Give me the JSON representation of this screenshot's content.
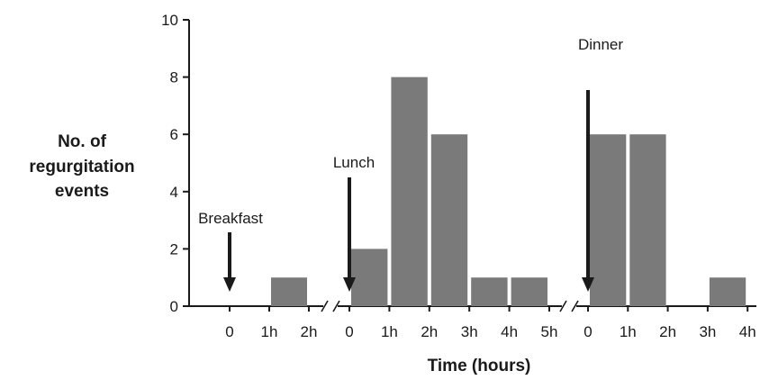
{
  "chart_data": {
    "type": "bar",
    "ylabel_lines": [
      "No.  of",
      "regurgitation",
      "events"
    ],
    "xlabel": "Time (hours)",
    "ylim": [
      0,
      10
    ],
    "yticks": [
      "0",
      "2",
      "4",
      "6",
      "8",
      "10"
    ],
    "grid": false,
    "legend": "none",
    "segments": [
      {
        "meal": "Breakfast",
        "ticks": [
          "0",
          "1h",
          "2h"
        ],
        "bars": [
          {
            "interval": "0-1h",
            "value": 0
          },
          {
            "interval": "1h-2h",
            "value": 1
          }
        ]
      },
      {
        "meal": "Lunch",
        "ticks": [
          "0",
          "1h",
          "2h",
          "3h",
          "4h",
          "5h"
        ],
        "bars": [
          {
            "interval": "0-1h",
            "value": 2
          },
          {
            "interval": "1h-2h",
            "value": 8
          },
          {
            "interval": "2h-3h",
            "value": 6
          },
          {
            "interval": "3h-4h",
            "value": 1
          },
          {
            "interval": "4h-5h",
            "value": 1
          }
        ]
      },
      {
        "meal": "Dinner",
        "ticks": [
          "0",
          "1h",
          "2h",
          "3h",
          "4h"
        ],
        "bars": [
          {
            "interval": "0-1h",
            "value": 6
          },
          {
            "interval": "1h-2h",
            "value": 6
          },
          {
            "interval": "2h-3h",
            "value": 0
          },
          {
            "interval": "3h-4h",
            "value": 1
          }
        ]
      }
    ],
    "colors": {
      "bar": "#7a7a7a",
      "axis": "#1a1a1a"
    }
  }
}
